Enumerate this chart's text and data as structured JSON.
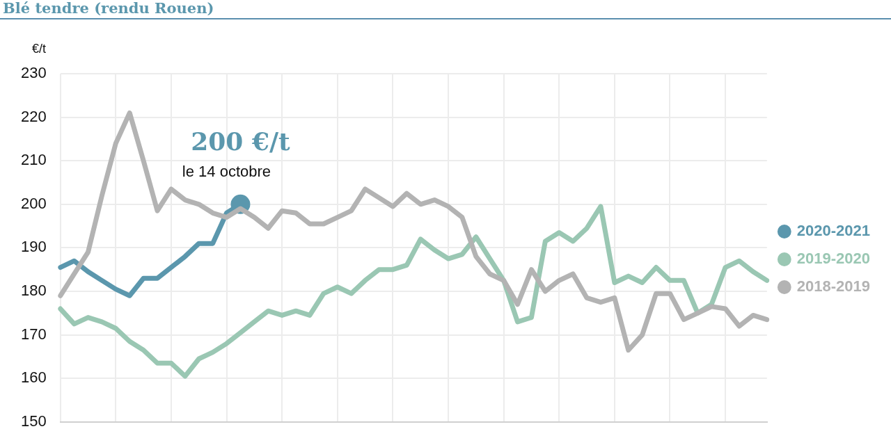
{
  "chart_data": {
    "type": "line",
    "title": "Blé tendre (rendu Rouen)",
    "ylabel": "€/t",
    "categories": [
      null,
      null,
      null,
      null,
      null,
      null,
      null,
      null,
      null,
      null,
      null,
      null,
      null,
      null,
      null,
      null,
      null,
      null,
      null,
      null,
      null,
      null,
      null,
      null,
      null,
      null,
      null,
      null,
      null,
      null,
      null,
      null,
      null,
      null,
      null,
      null,
      null,
      null,
      null,
      null,
      null,
      null,
      null,
      null,
      null,
      null,
      null,
      null,
      null,
      null,
      null,
      null
    ],
    "series": [
      {
        "name": "2020-2021",
        "color": "#5b97ad",
        "values": [
          185.5,
          187,
          184.5,
          182.5,
          180.5,
          179,
          183,
          183,
          185.5,
          188,
          191,
          191,
          198,
          200,
          null,
          null,
          null,
          null,
          null,
          null,
          null,
          null,
          null,
          null,
          null,
          null,
          null,
          null,
          null,
          null,
          null,
          null,
          null,
          null,
          null,
          null,
          null,
          null,
          null,
          null,
          null,
          null,
          null,
          null,
          null,
          null,
          null,
          null,
          null,
          null,
          null,
          null
        ]
      },
      {
        "name": "2019-2020",
        "color": "#9ac7b3",
        "values": [
          176,
          172.5,
          174,
          173,
          171.5,
          168.5,
          166.5,
          163.5,
          163.5,
          160.5,
          164.5,
          166,
          168,
          170.5,
          173,
          175.5,
          174.5,
          175.5,
          174.5,
          179.5,
          181,
          179.5,
          182.5,
          185,
          185,
          186,
          192,
          189.5,
          187.5,
          188.5,
          192.5,
          187.5,
          182.5,
          173,
          174,
          191.5,
          193.5,
          191.5,
          194.5,
          199.5,
          182,
          183.5,
          182,
          185.5,
          182.5,
          182.5,
          175,
          177,
          185.5,
          187,
          184.5,
          182.5
        ]
      },
      {
        "name": "2018-2019",
        "color": "#b3b3b3",
        "values": [
          179,
          184,
          189,
          202,
          214,
          221,
          210,
          198.5,
          203.5,
          201,
          200,
          198,
          197,
          199,
          197,
          194.5,
          198.5,
          198,
          195.5,
          195.5,
          197,
          198.5,
          203.5,
          201.5,
          199.5,
          202.5,
          200,
          201,
          199.5,
          197,
          188,
          184,
          182.5,
          177,
          185,
          180,
          182.5,
          184,
          178.5,
          177.5,
          178.5,
          166.5,
          170,
          179.5,
          179.5,
          173.5,
          175,
          176.5,
          176,
          172,
          174.5,
          173.5
        ]
      }
    ],
    "ylim": [
      150,
      230
    ],
    "yticks": [
      150,
      160,
      170,
      180,
      190,
      200,
      210,
      220,
      230
    ],
    "grid": true,
    "legend": "right",
    "marker": "none",
    "line_style": "solid",
    "tick_labels": "y",
    "annotations": [
      {
        "text": "200 €/t",
        "y": 200
      },
      "le 14 octobre"
    ]
  }
}
